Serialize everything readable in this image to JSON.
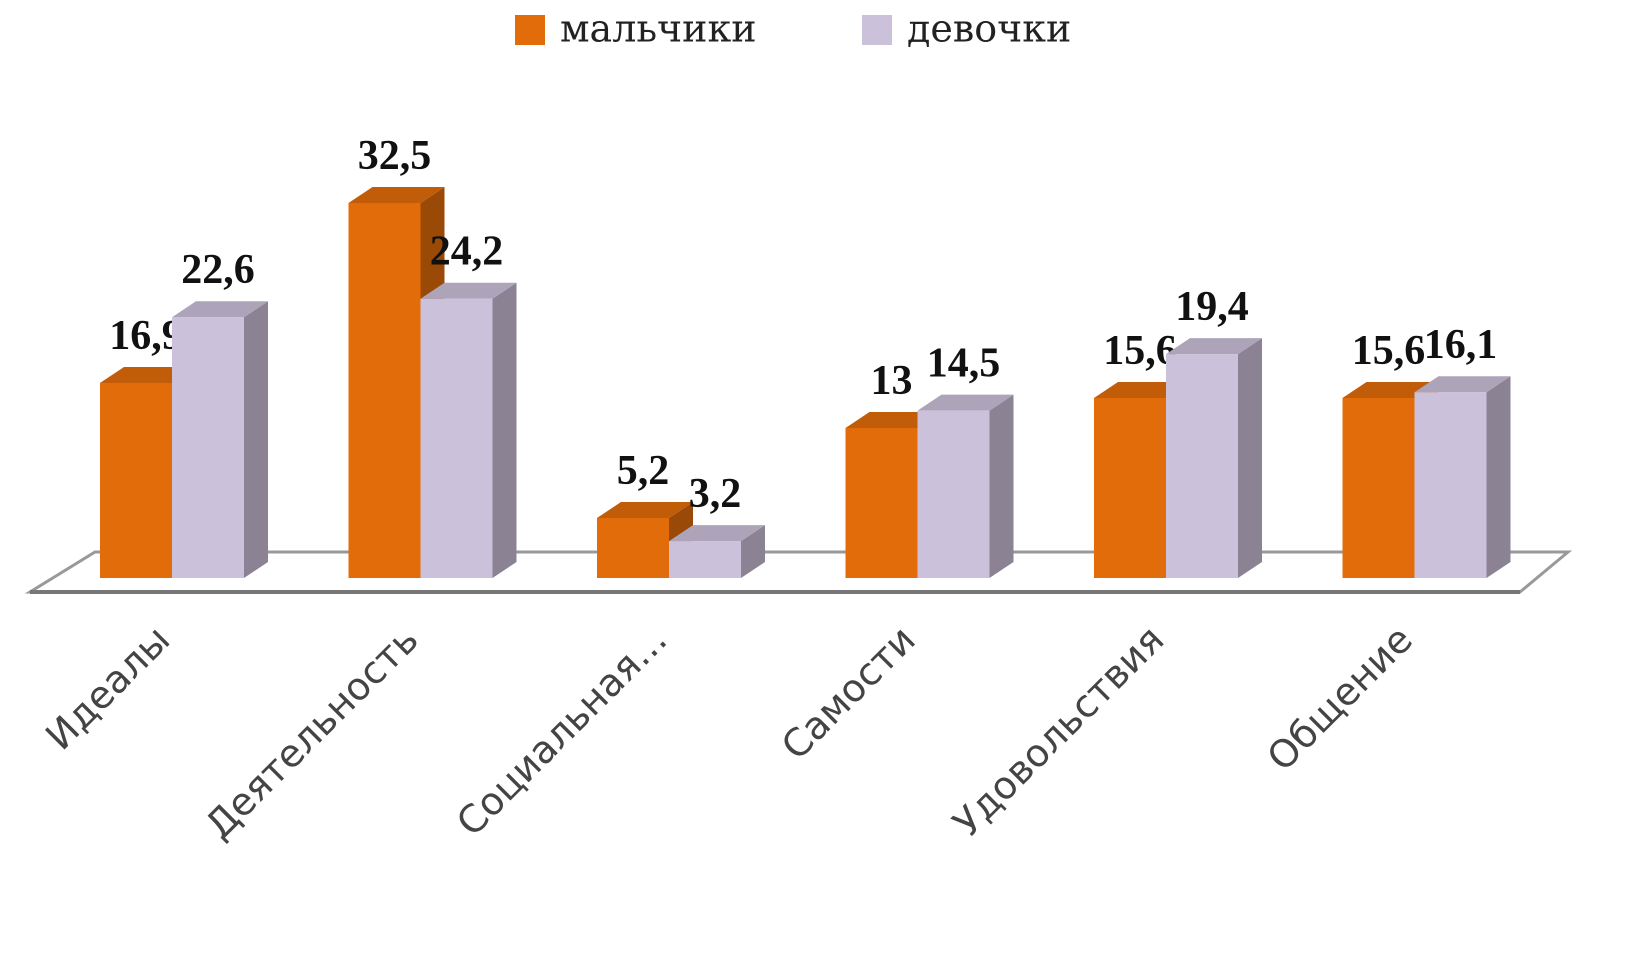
{
  "chart_data": {
    "type": "bar3d",
    "categories": [
      "Идеалы",
      "Деятельность",
      "Социальная...",
      "Самости",
      "Удовольствия",
      "Общение"
    ],
    "series": [
      {
        "name": "мальчики",
        "color": "#e36c0a",
        "values": [
          16.9,
          32.5,
          5.2,
          13,
          15.6,
          15.6
        ],
        "value_labels": [
          "16,9",
          "32,5",
          "5,2",
          "13",
          "15,6",
          "15,6"
        ]
      },
      {
        "name": "девочки",
        "color": "#ccc1da",
        "values": [
          22.6,
          24.2,
          3.2,
          14.5,
          19.4,
          16.1
        ],
        "value_labels": [
          "22,6",
          "24,2",
          "3,2",
          "14,5",
          "19,4",
          "16,1"
        ]
      }
    ],
    "legend": "top"
  }
}
